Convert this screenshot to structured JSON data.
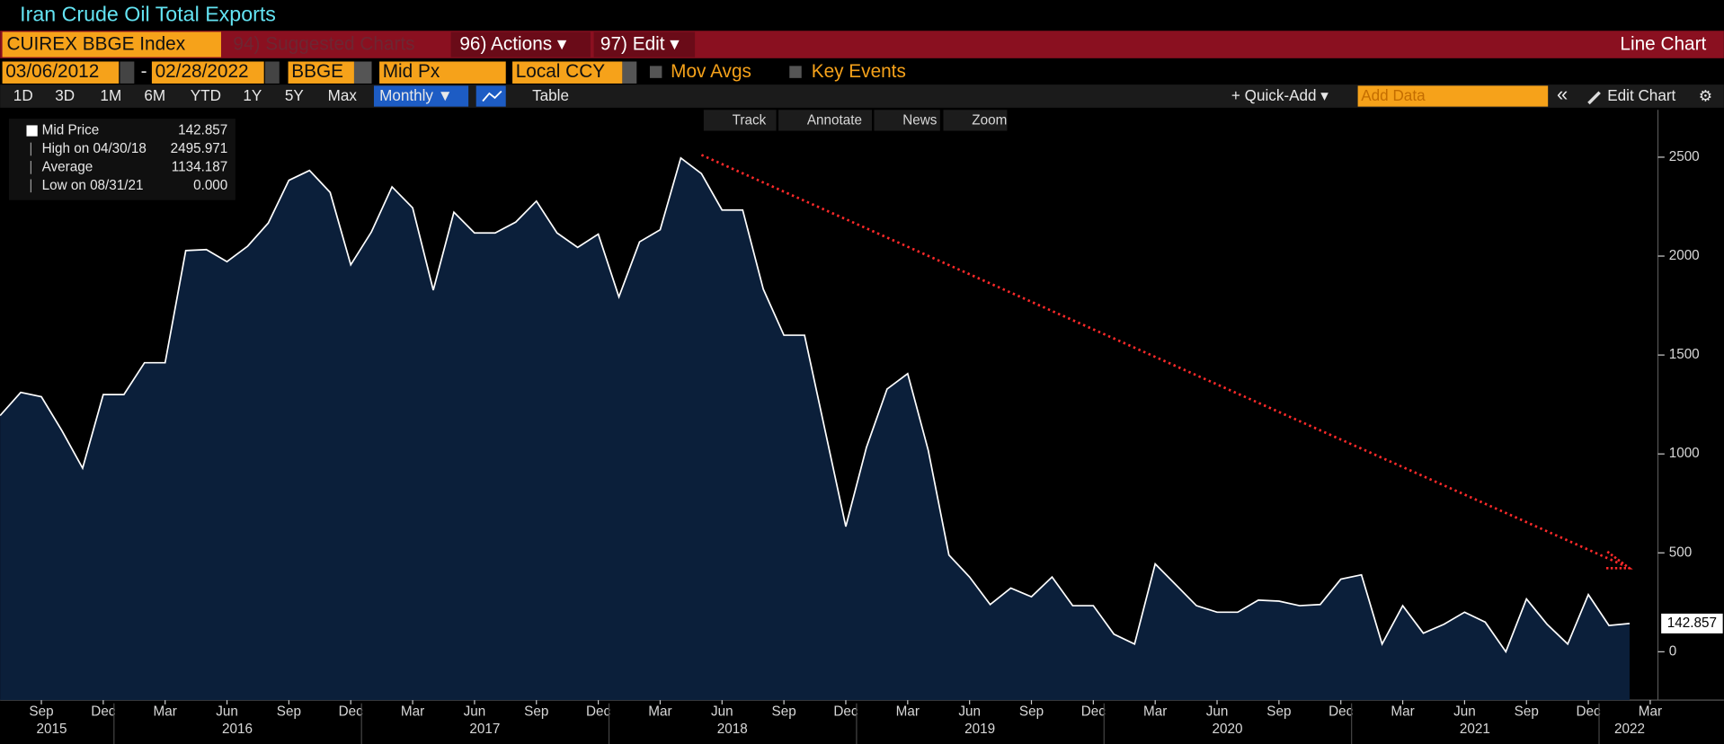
{
  "header": {
    "title": "Iran Crude Oil Total Exports"
  },
  "toolbar": {
    "security": "CUIREX BBGE Index",
    "suggested": "94) Suggested Charts",
    "actions": "96) Actions ▾",
    "edit": "97) Edit ▾",
    "chart_type": "Line Chart",
    "start_date": "03/06/2012",
    "date_sep": "-",
    "end_date": "02/28/2022",
    "source": "BBGE",
    "field": "Mid Px",
    "currency": "Local CCY",
    "mov_avgs": "Mov Avgs",
    "key_events": "Key Events",
    "periods": [
      "1D",
      "3D",
      "1M",
      "6M",
      "YTD",
      "1Y",
      "5Y",
      "Max"
    ],
    "frequency": "Monthly ▼",
    "table": "Table",
    "quick_add": "+ Quick-Add ▾",
    "add_data": "Add Data",
    "collapse": "«",
    "edit_chart": "Edit Chart",
    "settings": "⚙",
    "chart_tools": [
      "Track",
      "Annotate",
      "News",
      "Zoom"
    ]
  },
  "legend": {
    "rows": [
      {
        "label": "Mid Price",
        "value": 142.857
      },
      {
        "label": "High on 04/30/18",
        "value": 2495.971
      },
      {
        "label": "Average",
        "value": 1134.187
      },
      {
        "label": "Low on 08/31/21",
        "value": 0,
        "value_label": "0.000"
      }
    ]
  },
  "chart_data": {
    "type": "line",
    "x": [
      "2015-07",
      "2015-08",
      "2015-09",
      "2015-10",
      "2015-11",
      "2015-12",
      "2016-01",
      "2016-02",
      "2016-03",
      "2016-04",
      "2016-05",
      "2016-06",
      "2016-07",
      "2016-08",
      "2016-09",
      "2016-10",
      "2016-11",
      "2016-12",
      "2017-01",
      "2017-02",
      "2017-03",
      "2017-04",
      "2017-05",
      "2017-06",
      "2017-07",
      "2017-08",
      "2017-09",
      "2017-10",
      "2017-11",
      "2017-12",
      "2018-01",
      "2018-02",
      "2018-03",
      "2018-04",
      "2018-05",
      "2018-06",
      "2018-07",
      "2018-08",
      "2018-09",
      "2018-10",
      "2018-11",
      "2018-12",
      "2019-01",
      "2019-02",
      "2019-03",
      "2019-04",
      "2019-05",
      "2019-06",
      "2019-07",
      "2019-08",
      "2019-09",
      "2019-10",
      "2019-11",
      "2019-12",
      "2020-01",
      "2020-02",
      "2020-03",
      "2020-04",
      "2020-05",
      "2020-06",
      "2020-07",
      "2020-08",
      "2020-09",
      "2020-10",
      "2020-11",
      "2020-12",
      "2021-01",
      "2021-02",
      "2021-03",
      "2021-04",
      "2021-05",
      "2021-06",
      "2021-07",
      "2021-08",
      "2021-09",
      "2021-10",
      "2021-11",
      "2021-12",
      "2022-01",
      "2022-02"
    ],
    "series": [
      {
        "name": "Mid Price",
        "color": "#ffffff",
        "fill": "#0b1f3a",
        "values": [
          1194,
          1311,
          1289,
          1117,
          928,
          1300,
          1300,
          1461,
          1461,
          2028,
          2033,
          1972,
          2050,
          2167,
          2383,
          2433,
          2322,
          1956,
          2122,
          2350,
          2244,
          1828,
          2222,
          2117,
          2117,
          2172,
          2278,
          2117,
          2044,
          2111,
          1794,
          2072,
          2133,
          2496,
          2417,
          2233,
          2233,
          1833,
          1600,
          1600,
          1117,
          633,
          1033,
          1328,
          1406,
          1017,
          489,
          378,
          239,
          322,
          278,
          378,
          233,
          233,
          89,
          39,
          444,
          339,
          233,
          200,
          200,
          261,
          256,
          233,
          239,
          367,
          389,
          39,
          233,
          94,
          139,
          200,
          150,
          0,
          267,
          139,
          39,
          289,
          133,
          142.857
        ]
      }
    ],
    "xlim": [
      "2015-07",
      "2022-03"
    ],
    "xticks": [
      {
        "value": "2015-09",
        "label": "Sep"
      },
      {
        "value": "2015-12",
        "label": "Dec"
      },
      {
        "value": "2016-03",
        "label": "Mar"
      },
      {
        "value": "2016-06",
        "label": "Jun"
      },
      {
        "value": "2016-09",
        "label": "Sep"
      },
      {
        "value": "2016-12",
        "label": "Dec"
      },
      {
        "value": "2017-03",
        "label": "Mar"
      },
      {
        "value": "2017-06",
        "label": "Jun"
      },
      {
        "value": "2017-09",
        "label": "Sep"
      },
      {
        "value": "2017-12",
        "label": "Dec"
      },
      {
        "value": "2018-03",
        "label": "Mar"
      },
      {
        "value": "2018-06",
        "label": "Jun"
      },
      {
        "value": "2018-09",
        "label": "Sep"
      },
      {
        "value": "2018-12",
        "label": "Dec"
      },
      {
        "value": "2019-03",
        "label": "Mar"
      },
      {
        "value": "2019-06",
        "label": "Jun"
      },
      {
        "value": "2019-09",
        "label": "Sep"
      },
      {
        "value": "2019-12",
        "label": "Dec"
      },
      {
        "value": "2020-03",
        "label": "Mar"
      },
      {
        "value": "2020-06",
        "label": "Jun"
      },
      {
        "value": "2020-09",
        "label": "Sep"
      },
      {
        "value": "2020-12",
        "label": "Dec"
      },
      {
        "value": "2021-03",
        "label": "Mar"
      },
      {
        "value": "2021-06",
        "label": "Jun"
      },
      {
        "value": "2021-09",
        "label": "Sep"
      },
      {
        "value": "2021-12",
        "label": "Dec"
      },
      {
        "value": "2022-03",
        "label": "Mar"
      }
    ],
    "years": [
      2015,
      2016,
      2017,
      2018,
      2019,
      2020,
      2021,
      2022
    ],
    "ylim": [
      -244,
      2739
    ],
    "yticks": [
      0,
      500,
      1000,
      1500,
      2000,
      2500
    ],
    "grid": false
  }
}
